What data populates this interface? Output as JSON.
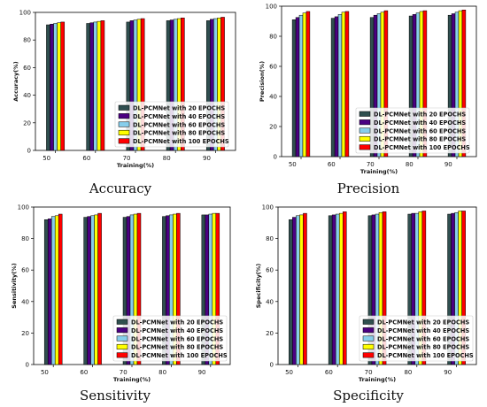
{
  "series_names": [
    "DL-PCMNet with 20 EPOCHS",
    "DL-PCMNet with 40 EPOCHS",
    "DL-PCMNet with 60 EPOCHS",
    "DL-PCMNet with 80 EPOCHS",
    "DL-PCMNet with 100 EPOCHS"
  ],
  "series_colors": [
    "#2f4f4f",
    "#4b0082",
    "#87ceeb",
    "#ffff00",
    "#ff0000"
  ],
  "chart_data": [
    {
      "type": "bar",
      "caption": "Accuracy",
      "xlabel": "Training(%)",
      "ylabel": "Accuracy(%)",
      "categories": [
        "50",
        "60",
        "70",
        "80",
        "90"
      ],
      "ylim": [
        0,
        100
      ],
      "yticks": [
        "0",
        "20",
        "40",
        "60",
        "80",
        "100"
      ],
      "legend_position": "lower-right",
      "series": [
        {
          "name": "DL-PCMNet with 20 EPOCHS",
          "values": [
            91,
            92,
            93,
            94,
            94
          ]
        },
        {
          "name": "DL-PCMNet with 40 EPOCHS",
          "values": [
            91.5,
            92.5,
            94,
            94.5,
            95
          ]
        },
        {
          "name": "DL-PCMNet with 60 EPOCHS",
          "values": [
            92,
            93,
            94.5,
            95,
            95.5
          ]
        },
        {
          "name": "DL-PCMNet with 80 EPOCHS",
          "values": [
            92.5,
            93.5,
            95,
            95.5,
            96
          ]
        },
        {
          "name": "DL-PCMNet with 100 EPOCHS",
          "values": [
            93,
            94,
            95.5,
            96,
            96.5
          ]
        }
      ]
    },
    {
      "type": "bar",
      "caption": "Precision",
      "xlabel": "Training(%)",
      "ylabel": "Precision(%)",
      "categories": [
        "50",
        "60",
        "70",
        "80",
        "90"
      ],
      "ylim": [
        0,
        100
      ],
      "yticks": [
        "0",
        "20",
        "40",
        "60",
        "80",
        "100"
      ],
      "legend_position": "lower-right",
      "series": [
        {
          "name": "DL-PCMNet with 20 EPOCHS",
          "values": [
            91,
            92,
            92.5,
            93.5,
            94
          ]
        },
        {
          "name": "DL-PCMNet with 40 EPOCHS",
          "values": [
            92.5,
            93,
            94,
            94.5,
            95
          ]
        },
        {
          "name": "DL-PCMNet with 60 EPOCHS",
          "values": [
            94,
            94.5,
            95,
            95.5,
            96
          ]
        },
        {
          "name": "DL-PCMNet with 80 EPOCHS",
          "values": [
            95.5,
            96,
            96,
            96.5,
            97
          ]
        },
        {
          "name": "DL-PCMNet with 100 EPOCHS",
          "values": [
            96.5,
            96.5,
            97,
            97,
            97.5
          ]
        }
      ]
    },
    {
      "type": "bar",
      "caption": "Sensitivity",
      "xlabel": "Training(%)",
      "ylabel": "Sensitivity(%)",
      "categories": [
        "50",
        "60",
        "70",
        "80",
        "90"
      ],
      "ylim": [
        0,
        100
      ],
      "yticks": [
        "0",
        "20",
        "40",
        "60",
        "80",
        "100"
      ],
      "legend_position": "lower-right",
      "series": [
        {
          "name": "DL-PCMNet with 20 EPOCHS",
          "values": [
            92,
            93.5,
            93.5,
            94,
            95
          ]
        },
        {
          "name": "DL-PCMNet with 40 EPOCHS",
          "values": [
            92.5,
            94,
            94,
            94.5,
            95
          ]
        },
        {
          "name": "DL-PCMNet with 60 EPOCHS",
          "values": [
            94,
            94.5,
            95,
            95,
            95.5
          ]
        },
        {
          "name": "DL-PCMNet with 80 EPOCHS",
          "values": [
            94.5,
            95,
            95.5,
            95.5,
            96
          ]
        },
        {
          "name": "DL-PCMNet with 100 EPOCHS",
          "values": [
            95.5,
            96,
            96,
            96,
            96
          ]
        }
      ]
    },
    {
      "type": "bar",
      "caption": "Specificity",
      "xlabel": "Training(%)",
      "ylabel": "Specificity(%)",
      "categories": [
        "50",
        "60",
        "70",
        "80",
        "90"
      ],
      "ylim": [
        0,
        100
      ],
      "yticks": [
        "0",
        "20",
        "40",
        "60",
        "80",
        "100"
      ],
      "legend_position": "lower-right",
      "series": [
        {
          "name": "DL-PCMNet with 20 EPOCHS",
          "values": [
            92,
            94.5,
            94.5,
            95.5,
            95.5
          ]
        },
        {
          "name": "DL-PCMNet with 40 EPOCHS",
          "values": [
            93.5,
            95,
            95,
            96,
            96
          ]
        },
        {
          "name": "DL-PCMNet with 60 EPOCHS",
          "values": [
            94.5,
            95.5,
            95.5,
            96,
            96.5
          ]
        },
        {
          "name": "DL-PCMNet with 80 EPOCHS",
          "values": [
            95,
            96,
            96.5,
            97,
            97.5
          ]
        },
        {
          "name": "DL-PCMNet with 100 EPOCHS",
          "values": [
            96,
            97,
            97,
            97.5,
            97.5
          ]
        }
      ]
    }
  ]
}
